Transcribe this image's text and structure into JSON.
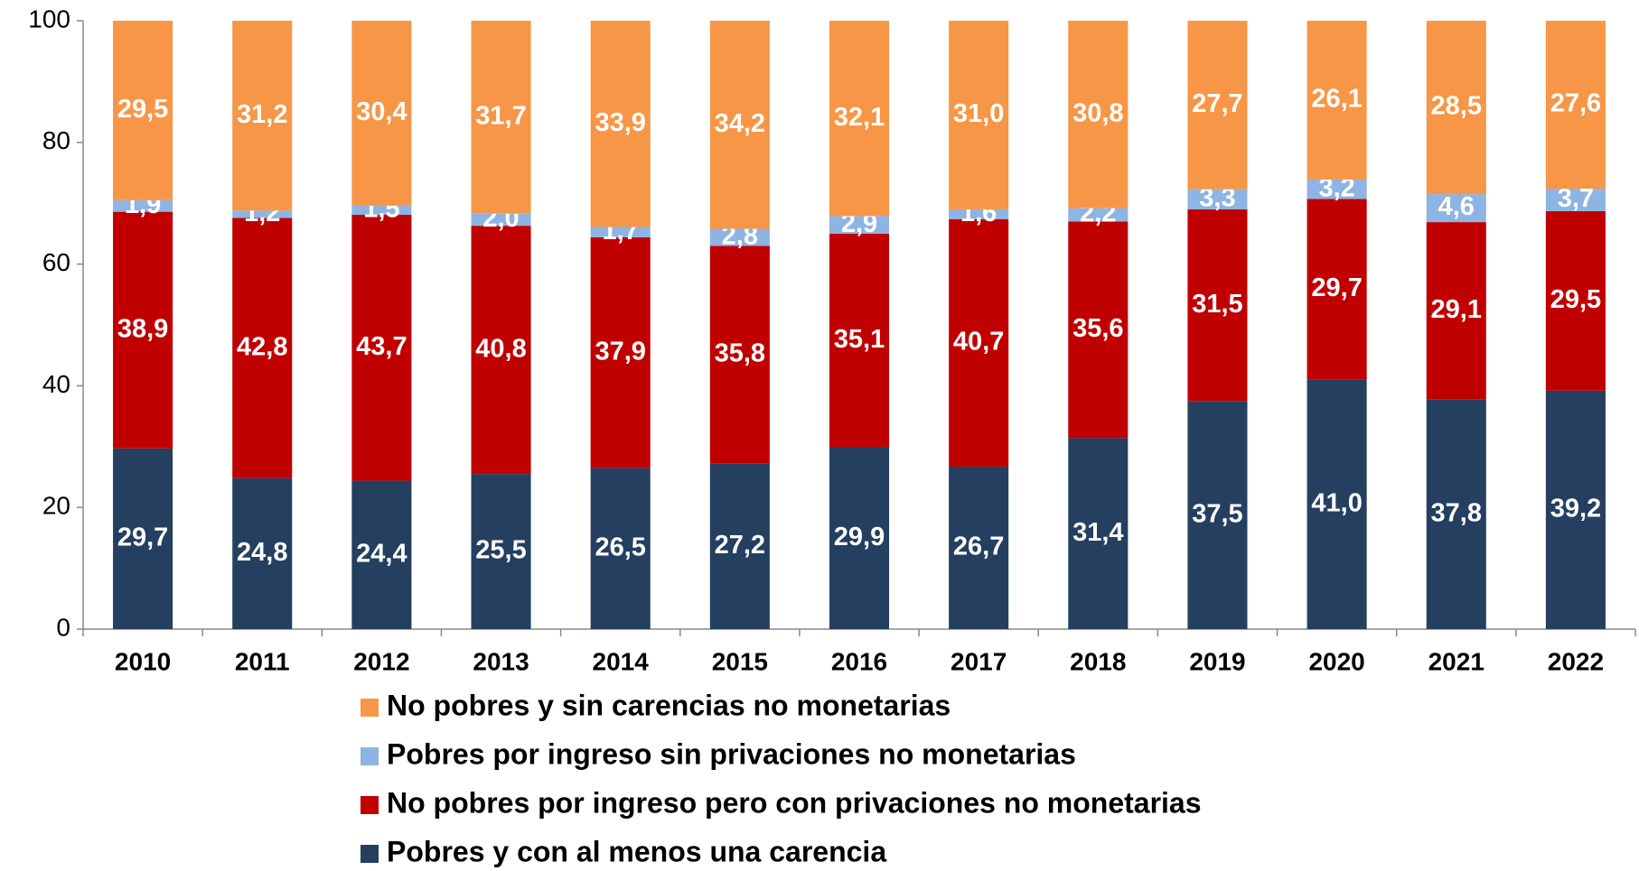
{
  "chart_data": {
    "type": "stacked_bar",
    "categories": [
      "2010",
      "2011",
      "2012",
      "2013",
      "2014",
      "2015",
      "2016",
      "2017",
      "2018",
      "2019",
      "2020",
      "2021",
      "2022"
    ],
    "series": [
      {
        "name": "Pobres y con al menos una carencia",
        "color": "#243f60",
        "values": [
          29.7,
          24.8,
          24.4,
          25.5,
          26.5,
          27.2,
          29.9,
          26.7,
          31.4,
          37.5,
          41.0,
          37.8,
          39.2
        ],
        "value_labels": [
          "29,7",
          "24,8",
          "24,4",
          "25,5",
          "26,5",
          "27,2",
          "29,9",
          "26,7",
          "31,4",
          "37,5",
          "41,0",
          "37,8",
          "39,2"
        ]
      },
      {
        "name": "No pobres por ingreso pero con privaciones no monetarias",
        "color": "#c00000",
        "values": [
          38.9,
          42.8,
          43.7,
          40.8,
          37.9,
          35.8,
          35.1,
          40.7,
          35.6,
          31.5,
          29.7,
          29.1,
          29.5
        ],
        "value_labels": [
          "38,9",
          "42,8",
          "43,7",
          "40,8",
          "37,9",
          "35,8",
          "35,1",
          "40,7",
          "35,6",
          "31,5",
          "29,7",
          "29,1",
          "29,5"
        ]
      },
      {
        "name": "Pobres por ingreso sin privaciones no monetarias",
        "color": "#8eb4e3",
        "values": [
          1.9,
          1.2,
          1.5,
          2.0,
          1.7,
          2.8,
          2.9,
          1.6,
          2.2,
          3.3,
          3.2,
          4.6,
          3.7
        ],
        "value_labels": [
          "1,9",
          "1,2",
          "1,5",
          "2,0",
          "1,7",
          "2,8",
          "2,9",
          "1,6",
          "2,2",
          "3,3",
          "3,2",
          "4,6",
          "3,7"
        ]
      },
      {
        "name": "No pobres y sin carencias no monetarias",
        "color": "#f79646",
        "values": [
          29.5,
          31.2,
          30.4,
          31.7,
          33.9,
          34.2,
          32.1,
          31.0,
          30.8,
          27.7,
          26.1,
          28.5,
          27.6
        ],
        "value_labels": [
          "29,5",
          "31,2",
          "30,4",
          "31,7",
          "33,9",
          "34,2",
          "32,1",
          "31,0",
          "30,8",
          "27,7",
          "26,1",
          "28,5",
          "27,6"
        ]
      }
    ],
    "ylim": [
      0,
      100
    ],
    "yticks": [
      0,
      20,
      40,
      60,
      80,
      100
    ],
    "grid": false
  }
}
